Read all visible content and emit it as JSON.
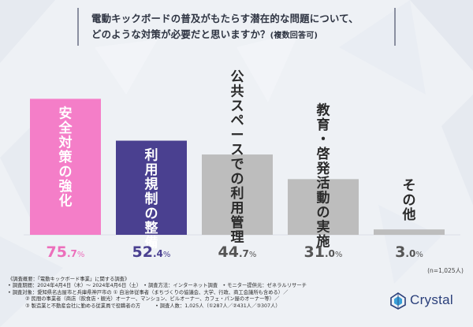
{
  "title": {
    "line1": "電動キックボードの普及がもたらす潜在的な問題について、",
    "line2": "どのような対策が必要だと思いますか？",
    "note": "(複数回答可)"
  },
  "chart_data": {
    "type": "bar",
    "categories": [
      "安全対策の強化",
      "利用規制の整備",
      "公共スペースでの利用管理",
      "教育・啓発活動の実施",
      "その他"
    ],
    "values": [
      75.7,
      52.4,
      44.7,
      31.0,
      3.0
    ],
    "value_labels": [
      {
        "int": "75",
        "dec": ".7",
        "unit": "%"
      },
      {
        "int": "52",
        "dec": ".4",
        "unit": "%"
      },
      {
        "int": "44",
        "dec": ".7",
        "unit": "%"
      },
      {
        "int": "31",
        "dec": ".0",
        "unit": "%"
      },
      {
        "int": "3",
        "dec": ".0",
        "unit": "%"
      }
    ],
    "colors": [
      "#f47ec8",
      "#4a4090",
      "#bdbdbd",
      "#bdbdbd",
      "#bdbdbd"
    ],
    "label_colors": [
      "#ffffff",
      "#ffffff",
      "#2a2a2a",
      "#2a2a2a",
      "#2a2a2a"
    ],
    "value_colors": [
      "#ec6fbb",
      "#4a4090",
      "#555555",
      "#555555",
      "#555555"
    ],
    "ylim": [
      0,
      100
    ],
    "legend": "none",
    "grid": false
  },
  "n_label": "(n=1,025人)",
  "footer": {
    "line1": "《調査概要：「電動キックボード事業」に関する調査》",
    "line2": "• 調査期間：2024年4月4日（木）～ 2024年4月6日（土）　• 調査方法：インターネット調査　• モニター提供元：ゼネラルリサーチ",
    "line3": "• 調査対象：愛知県名古屋市と兵庫県神戸市の ① 自治体従事者（まちづくりの協議会、大学、行政、商工会議所も含める）／",
    "line4": "② 民間の事業者（商店（飲食店・観光）オーナー、マンション、ビルオーナー、カフェ・パン屋のオーナー等）／",
    "line5": "③ 製造業と不動産会社に勤める従業員で役職者の方　　　• 調査人数：1,025人（①287人／②431人／③307人）"
  },
  "logo": {
    "text": "Crystal",
    "color": "#2a3f7a"
  }
}
